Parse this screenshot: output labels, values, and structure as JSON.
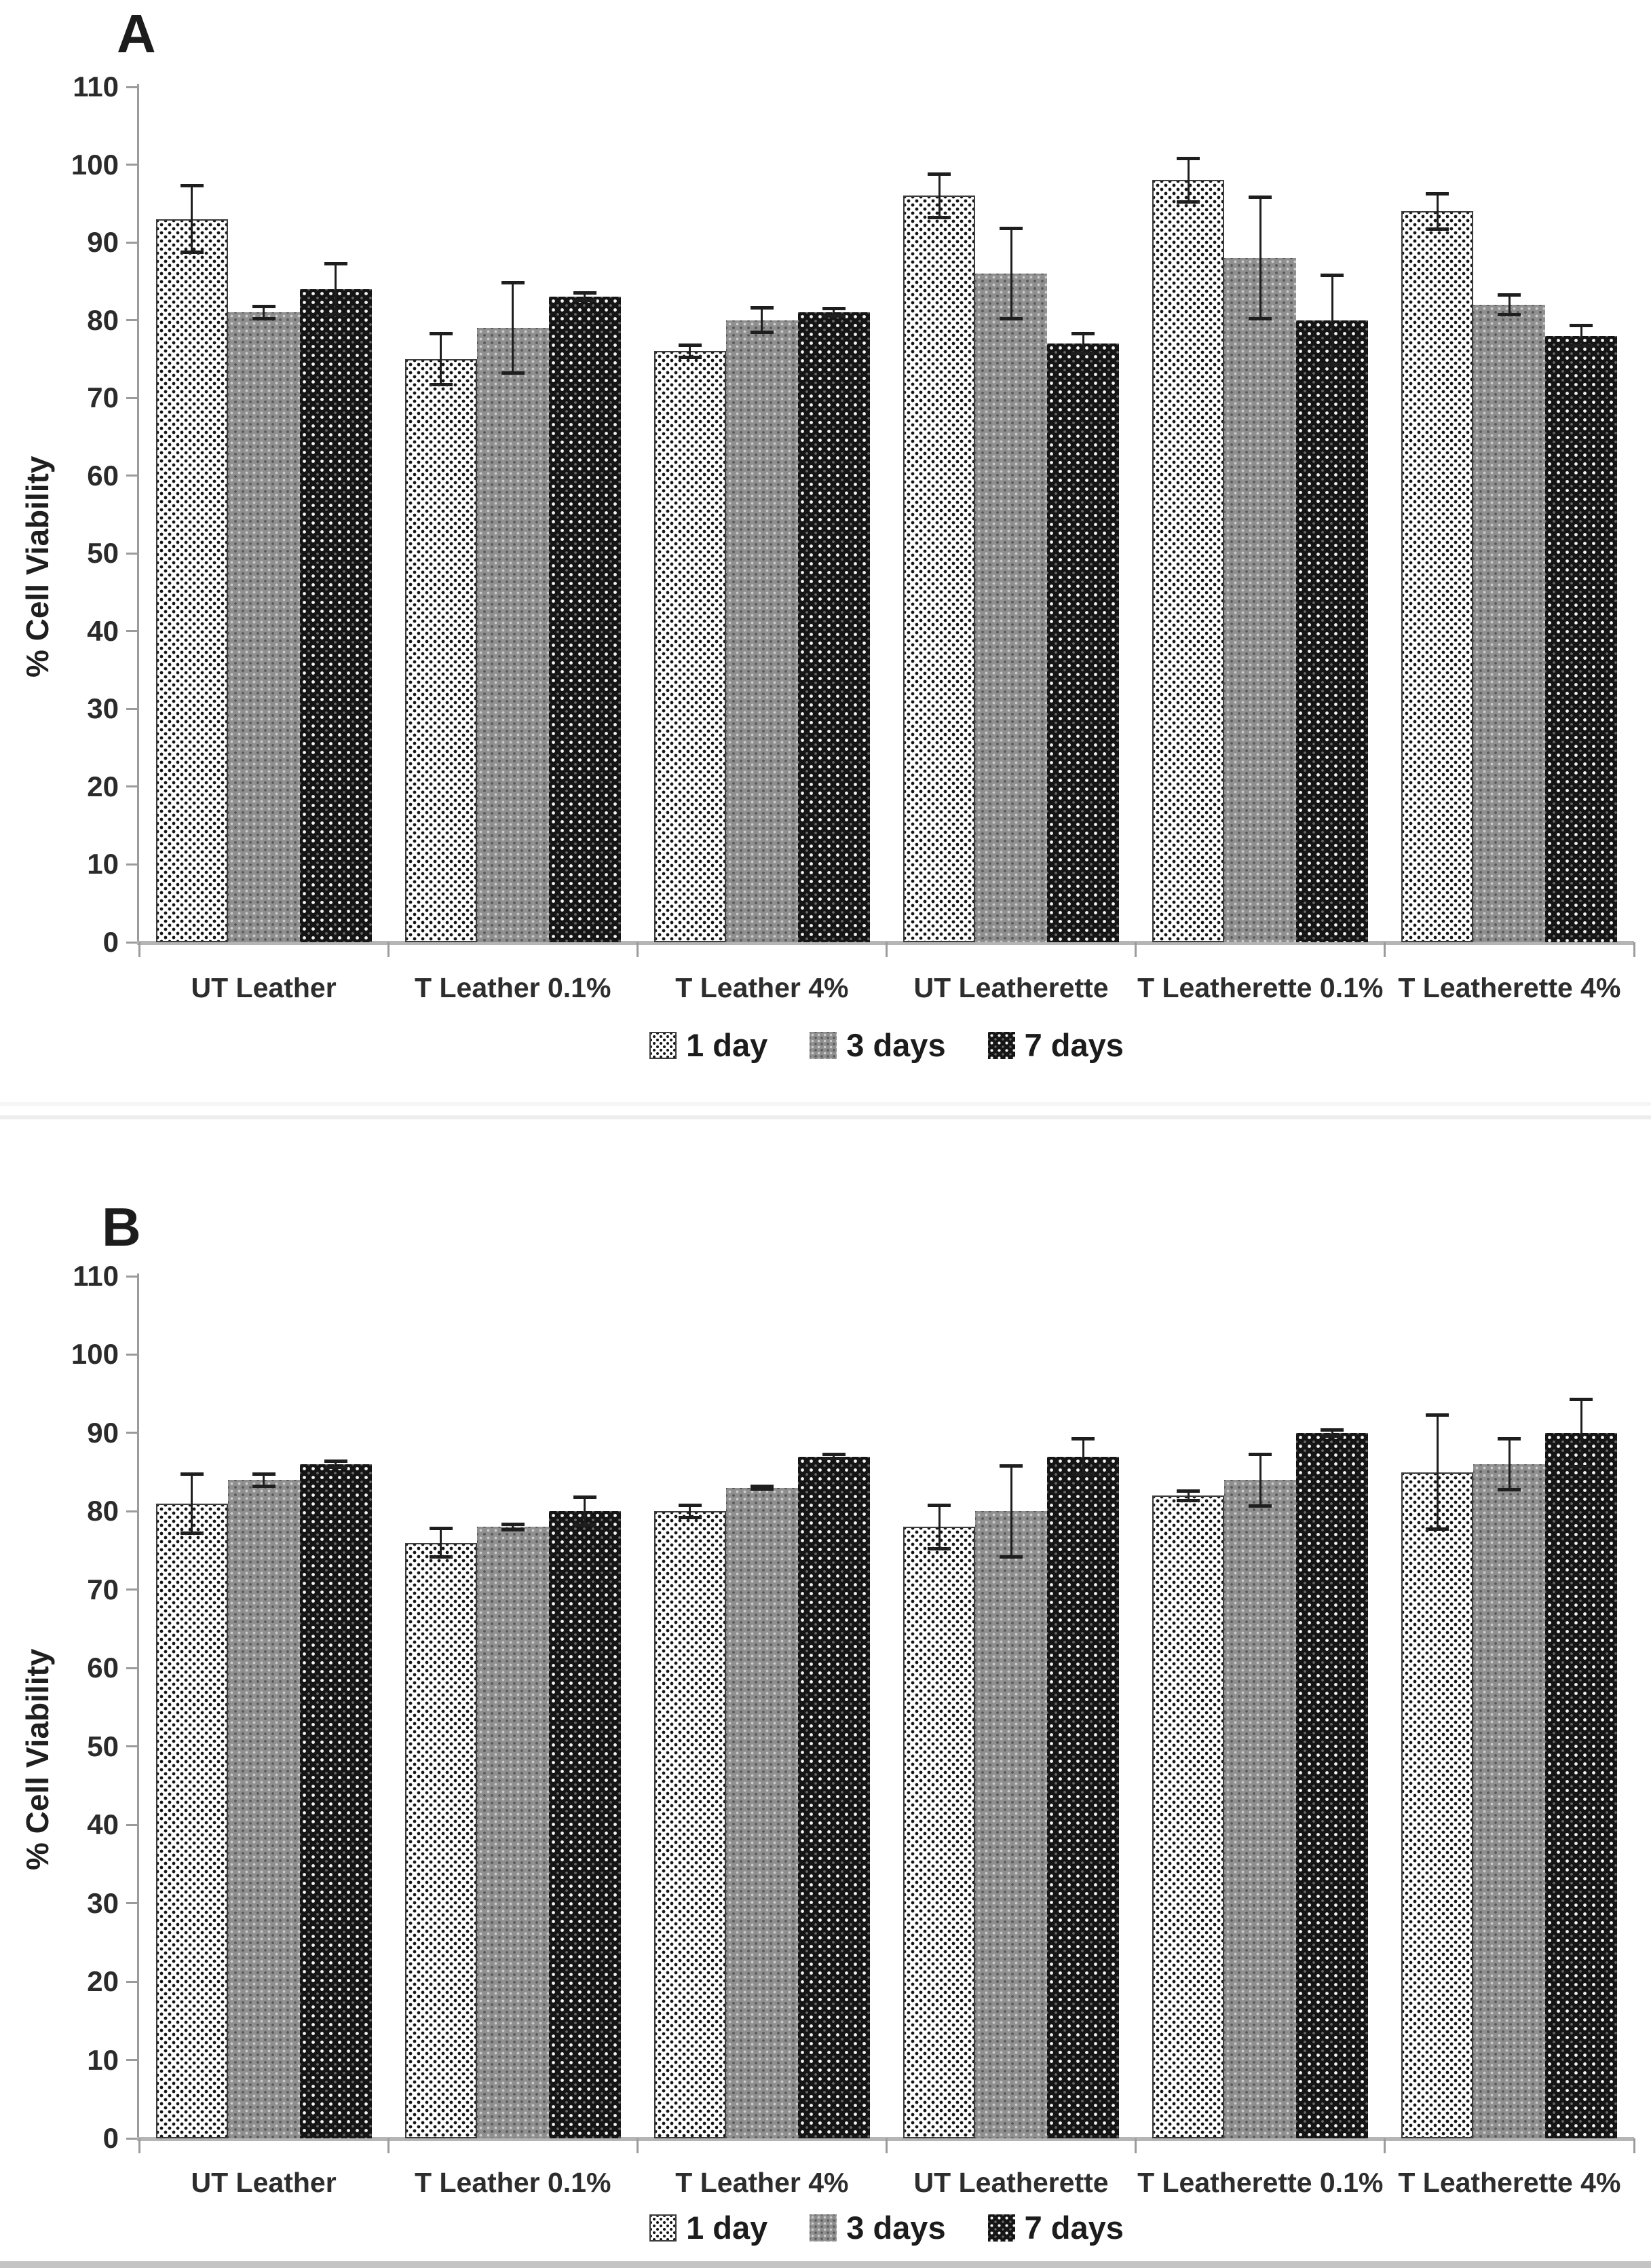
{
  "figure": {
    "ylabel": "% Cell Viability",
    "legend_labels": [
      "1 day",
      "3 days",
      "7 days"
    ],
    "categories": [
      "UT Leather",
      "T Leather 0.1%",
      "T Leather 4%",
      "UT Leatherette",
      "T Leatherette 0.1%",
      "T Leatherette 4%"
    ],
    "colors": {
      "bar_1_day_fill": "#ffffff",
      "bar_1_day_dots": "#141414",
      "bar_3_days_fill": "#8f8f8f",
      "bar_7_days_fill": "#151515",
      "axis_line": "#9b9b9b",
      "x_axis_line": "#b5b5b5",
      "text": "#1c1c1c"
    }
  },
  "chart_data": [
    {
      "type": "bar",
      "panel_label": "A",
      "title": "A",
      "ylabel": "% Cell Viability",
      "xlabel": "",
      "ylim": [
        0,
        110
      ],
      "ytick_step": 10,
      "grid": false,
      "legend_position": "bottom-center",
      "error_bars": true,
      "categories": [
        "UT Leather",
        "T Leather 0.1%",
        "T Leather 4%",
        "UT Leatherette",
        "T Leatherette 0.1%",
        "T Leatherette 4%"
      ],
      "series": [
        {
          "name": "1 day",
          "values": [
            93,
            75,
            76,
            96,
            98,
            94
          ],
          "errors": [
            4.5,
            3.5,
            1.0,
            3.0,
            3.0,
            2.5
          ]
        },
        {
          "name": "3 days",
          "values": [
            81,
            79,
            80,
            86,
            88,
            82
          ],
          "errors": [
            1.0,
            6.0,
            1.8,
            6.0,
            8.0,
            1.5
          ]
        },
        {
          "name": "7 days",
          "values": [
            84,
            83,
            81,
            77,
            80,
            78
          ],
          "errors": [
            3.5,
            0.7,
            0.7,
            1.5,
            6.0,
            1.5
          ]
        }
      ]
    },
    {
      "type": "bar",
      "panel_label": "B",
      "title": "B",
      "ylabel": "% Cell Viability",
      "xlabel": "",
      "ylim": [
        0,
        110
      ],
      "ytick_step": 10,
      "grid": false,
      "legend_position": "bottom-center",
      "error_bars": true,
      "categories": [
        "UT Leather",
        "T Leather 0.1%",
        "T Leather 4%",
        "UT Leatherette",
        "T Leatherette 0.1%",
        "T Leatherette 4%"
      ],
      "series": [
        {
          "name": "1 day",
          "values": [
            81,
            76,
            80,
            78,
            82,
            85
          ],
          "errors": [
            4.0,
            2.0,
            1.0,
            3.0,
            0.8,
            7.5
          ]
        },
        {
          "name": "3 days",
          "values": [
            84,
            78,
            83,
            80,
            84,
            86
          ],
          "errors": [
            1.0,
            0.6,
            0.4,
            6.0,
            3.5,
            3.5
          ]
        },
        {
          "name": "7 days",
          "values": [
            86,
            80,
            87,
            87,
            90,
            90
          ],
          "errors": [
            0.6,
            2.0,
            0.5,
            2.5,
            0.6,
            4.5
          ]
        }
      ]
    }
  ],
  "layout_text": {
    "panel_a_label": "A",
    "panel_b_label": "B"
  }
}
